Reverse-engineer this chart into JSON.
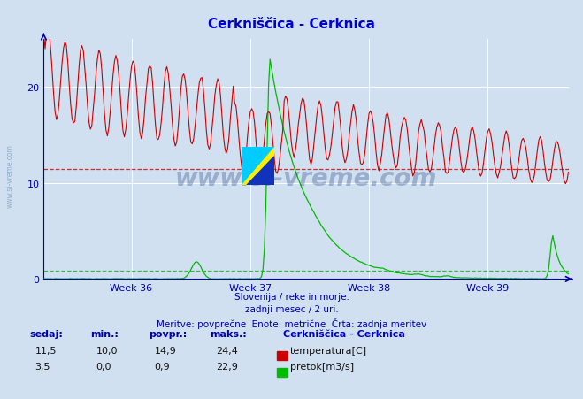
{
  "title": "Cerkniščica - Cerknica",
  "title_color": "#0000cc",
  "bg_color": "#d0e0f0",
  "plot_bg_color": "#d0e0f0",
  "grid_color": "#ffffff",
  "axis_color": "#0000aa",
  "xlabel_weeks": [
    "Week 36",
    "Week 37",
    "Week 38",
    "Week 39"
  ],
  "ylim": [
    0,
    25
  ],
  "temp_color": "#cc0000",
  "flow_color": "#00bb00",
  "temp_avg_line": 11.5,
  "flow_avg_line": 0.9,
  "watermark": "www.si-vreme.com",
  "subtitle1": "Slovenija / reke in morje.",
  "subtitle2": "zadnji mesec / 2 uri.",
  "subtitle3": "Meritve: povprečne  Enote: metrične  Črta: zadnja meritev",
  "footer_cols": [
    "sedaj:",
    "min.:",
    "povpr.:",
    "maks.:"
  ],
  "footer_temp": [
    "11,5",
    "10,0",
    "14,9",
    "24,4"
  ],
  "footer_flow": [
    "3,5",
    "0,0",
    "0,9",
    "22,9"
  ],
  "legend_title": "Cerkniščica - Cerknica",
  "legend_temp": "temperatura[C]",
  "legend_flow": "pretok[m3/s]"
}
